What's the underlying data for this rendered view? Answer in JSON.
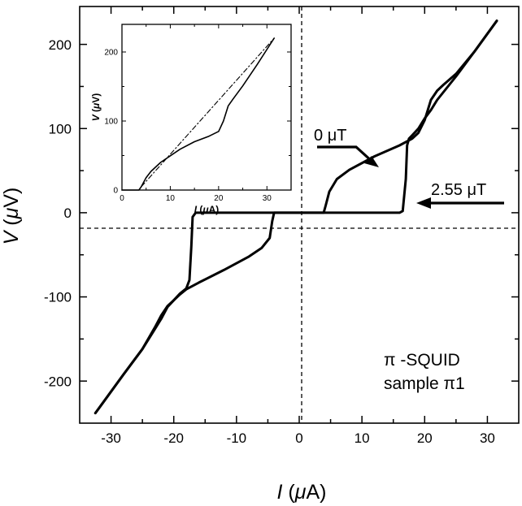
{
  "chart_data": [
    {
      "id": "main",
      "type": "line",
      "xlabel": {
        "italic": "I",
        "rest": " (",
        "mu": "μ",
        "unit": "A)"
      },
      "ylabel": {
        "italic": "V",
        "rest": " (",
        "mu": "μ",
        "unit": "V)"
      },
      "xlim": [
        -35,
        35
      ],
      "ylim": [
        -250,
        245
      ],
      "xticks": [
        -30,
        -20,
        -10,
        0,
        10,
        20,
        30
      ],
      "yticks": [
        -200,
        -100,
        0,
        100,
        200
      ],
      "xtick_labels": [
        "-30",
        "-20",
        "-10",
        "0",
        "10",
        "20",
        "30"
      ],
      "ytick_labels": [
        "-200",
        "-100",
        "0",
        "100",
        "200"
      ],
      "grid": false,
      "dashed_zero_lines": true,
      "series": [
        {
          "values": [
            [
              -32.5,
              -238
            ],
            [
              -28,
              -192
            ],
            [
              -25,
              -162
            ],
            [
              -23,
              -136
            ],
            [
              -22,
              -122
            ],
            [
              -21,
              -111
            ],
            [
              -20,
              -104
            ],
            [
              -19,
              -96
            ],
            [
              -18,
              -90
            ],
            [
              -17.5,
              -80
            ],
            [
              -17.2,
              -40
            ],
            [
              -17,
              -5
            ],
            [
              -16.5,
              0
            ],
            [
              -10,
              0
            ],
            [
              0,
              0
            ],
            [
              10,
              0
            ],
            [
              16,
              0
            ],
            [
              16.5,
              2
            ],
            [
              17,
              40
            ],
            [
              17.2,
              80
            ],
            [
              17.5,
              88
            ],
            [
              18,
              92
            ],
            [
              19,
              100
            ],
            [
              20,
              112
            ],
            [
              21,
              122
            ],
            [
              22,
              134
            ],
            [
              25,
              162
            ],
            [
              28,
              192
            ],
            [
              31.5,
              228
            ]
          ]
        },
        {
          "values": [
            [
              -32.5,
              -238
            ],
            [
              -28,
              -192
            ],
            [
              -25,
              -162
            ],
            [
              -23,
              -138
            ],
            [
              -22,
              -126
            ],
            [
              -21,
              -112
            ],
            [
              -20,
              -104
            ],
            [
              -19,
              -97
            ],
            [
              -18,
              -91
            ],
            [
              -16,
              -83
            ],
            [
              -12,
              -68
            ],
            [
              -8,
              -52
            ],
            [
              -6,
              -42
            ],
            [
              -4.7,
              -30
            ],
            [
              -4.3,
              -10
            ],
            [
              -4,
              0
            ],
            [
              0,
              0
            ],
            [
              3.9,
              0
            ],
            [
              4.2,
              8
            ],
            [
              4.8,
              25
            ],
            [
              6,
              40
            ],
            [
              8,
              51
            ],
            [
              12,
              67
            ],
            [
              16,
              80
            ],
            [
              18,
              88
            ],
            [
              19,
              95
            ],
            [
              20,
              110
            ],
            [
              21,
              134
            ],
            [
              22,
              145
            ],
            [
              23,
              152
            ],
            [
              25,
              165
            ],
            [
              28,
              192
            ],
            [
              31.5,
              228
            ]
          ]
        }
      ],
      "annotations": [
        {
          "prefix": "0 ",
          "mu": "μ",
          "suffix": "T"
        },
        {
          "prefix": "2.55 ",
          "mu": "μ",
          "suffix": "T"
        },
        {
          "pi": "π",
          "suffix": " -SQUID"
        },
        {
          "prefix": "sample ",
          "pi": "π",
          "suffix": "1"
        }
      ]
    },
    {
      "id": "inset",
      "type": "line",
      "xlabel": {
        "italic": "I",
        "rest": " (",
        "mu": "μ",
        "unit": "A)"
      },
      "ylabel": {
        "italic": "V",
        "rest": " (",
        "mu": "μ",
        "unit": "V)"
      },
      "xlim": [
        0,
        35
      ],
      "ylim": [
        0,
        240
      ],
      "xticks": [
        0,
        10,
        20,
        30
      ],
      "yticks": [
        0,
        100,
        200
      ],
      "xtick_labels": [
        "0",
        "10",
        "20",
        "30"
      ],
      "ytick_labels": [
        "0",
        "100",
        "200"
      ],
      "series": [
        {
          "style": "solid",
          "values": [
            [
              0,
              0
            ],
            [
              3.5,
              0
            ],
            [
              4,
              5
            ],
            [
              5,
              18
            ],
            [
              6,
              27
            ],
            [
              8,
              40
            ],
            [
              12,
              59
            ],
            [
              15,
              70
            ],
            [
              18,
              78
            ],
            [
              20,
              85
            ],
            [
              21,
              100
            ],
            [
              22,
              122
            ],
            [
              23,
              132
            ],
            [
              25,
              151
            ],
            [
              28,
              182
            ],
            [
              31.5,
              220
            ]
          ]
        },
        {
          "style": "dash-dot",
          "values": [
            [
              4,
              5
            ],
            [
              31.5,
              220
            ]
          ]
        }
      ]
    }
  ]
}
